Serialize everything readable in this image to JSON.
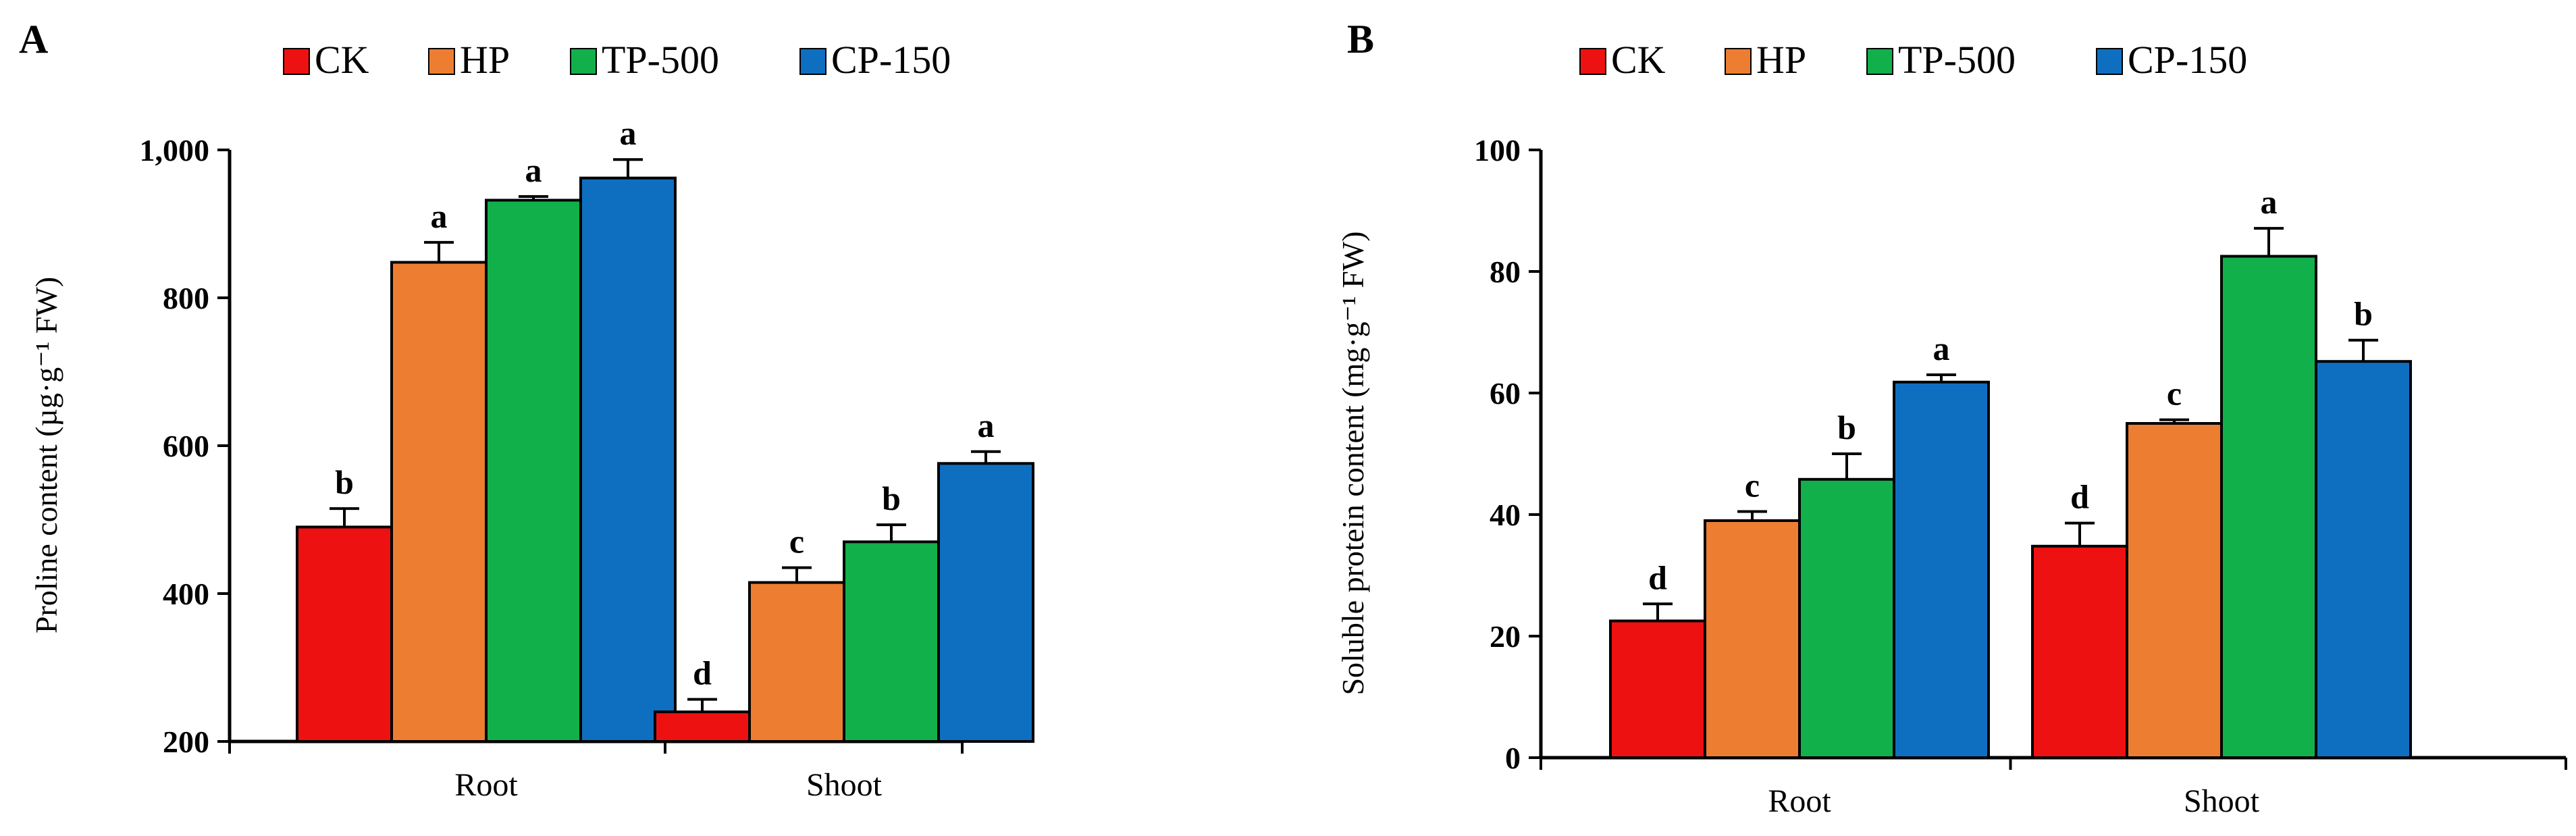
{
  "series_colors": {
    "CK": "#ee1111",
    "HP": "#ed7d31",
    "TP-500": "#12b04a",
    "CP-150": "#0e6fc1"
  },
  "chart_data": [
    {
      "panel": "A",
      "type": "bar",
      "legend": [
        "CK",
        "HP",
        "TP-500",
        "CP-150"
      ],
      "categories": [
        "Root",
        "Shoot"
      ],
      "ylabel": "Proline content (µg·g⁻¹ FW)",
      "ylim": [
        200,
        1000
      ],
      "yticks": [
        200,
        400,
        600,
        800,
        1000
      ],
      "ytick_labels": [
        "200",
        "400",
        "600",
        "800",
        "1,000"
      ],
      "series": [
        {
          "name": "CK",
          "values": [
            490,
            240
          ],
          "errors": [
            25,
            17
          ],
          "letters": [
            "b",
            "d"
          ]
        },
        {
          "name": "HP",
          "values": [
            848,
            415
          ],
          "errors": [
            27,
            20
          ],
          "letters": [
            "a",
            "c"
          ]
        },
        {
          "name": "TP-500",
          "values": [
            932,
            470
          ],
          "errors": [
            5,
            23
          ],
          "letters": [
            "a",
            "b"
          ]
        },
        {
          "name": "CP-150",
          "values": [
            962,
            576
          ],
          "errors": [
            25,
            16
          ],
          "letters": [
            "a",
            "a"
          ]
        }
      ]
    },
    {
      "panel": "B",
      "type": "bar",
      "legend": [
        "CK",
        "HP",
        "TP-500",
        "CP-150"
      ],
      "categories": [
        "Root",
        "Shoot"
      ],
      "ylabel": "Soluble protein content (mg·g⁻¹ FW)",
      "ylim": [
        0,
        100
      ],
      "yticks": [
        0,
        20,
        40,
        60,
        80,
        100
      ],
      "ytick_labels": [
        "0",
        "20",
        "40",
        "60",
        "80",
        "100"
      ],
      "series": [
        {
          "name": "CK",
          "values": [
            22.5,
            34.8
          ],
          "errors": [
            2.8,
            3.8
          ],
          "letters": [
            "d",
            "d"
          ]
        },
        {
          "name": "HP",
          "values": [
            39,
            55
          ],
          "errors": [
            1.5,
            0.6
          ],
          "letters": [
            "c",
            "c"
          ]
        },
        {
          "name": "TP-500",
          "values": [
            45.8,
            82.5
          ],
          "errors": [
            4.2,
            4.6
          ],
          "letters": [
            "b",
            "a"
          ]
        },
        {
          "name": "CP-150",
          "values": [
            61.8,
            65.2
          ],
          "errors": [
            1.2,
            3.5
          ],
          "letters": [
            "a",
            "b"
          ]
        }
      ]
    }
  ]
}
